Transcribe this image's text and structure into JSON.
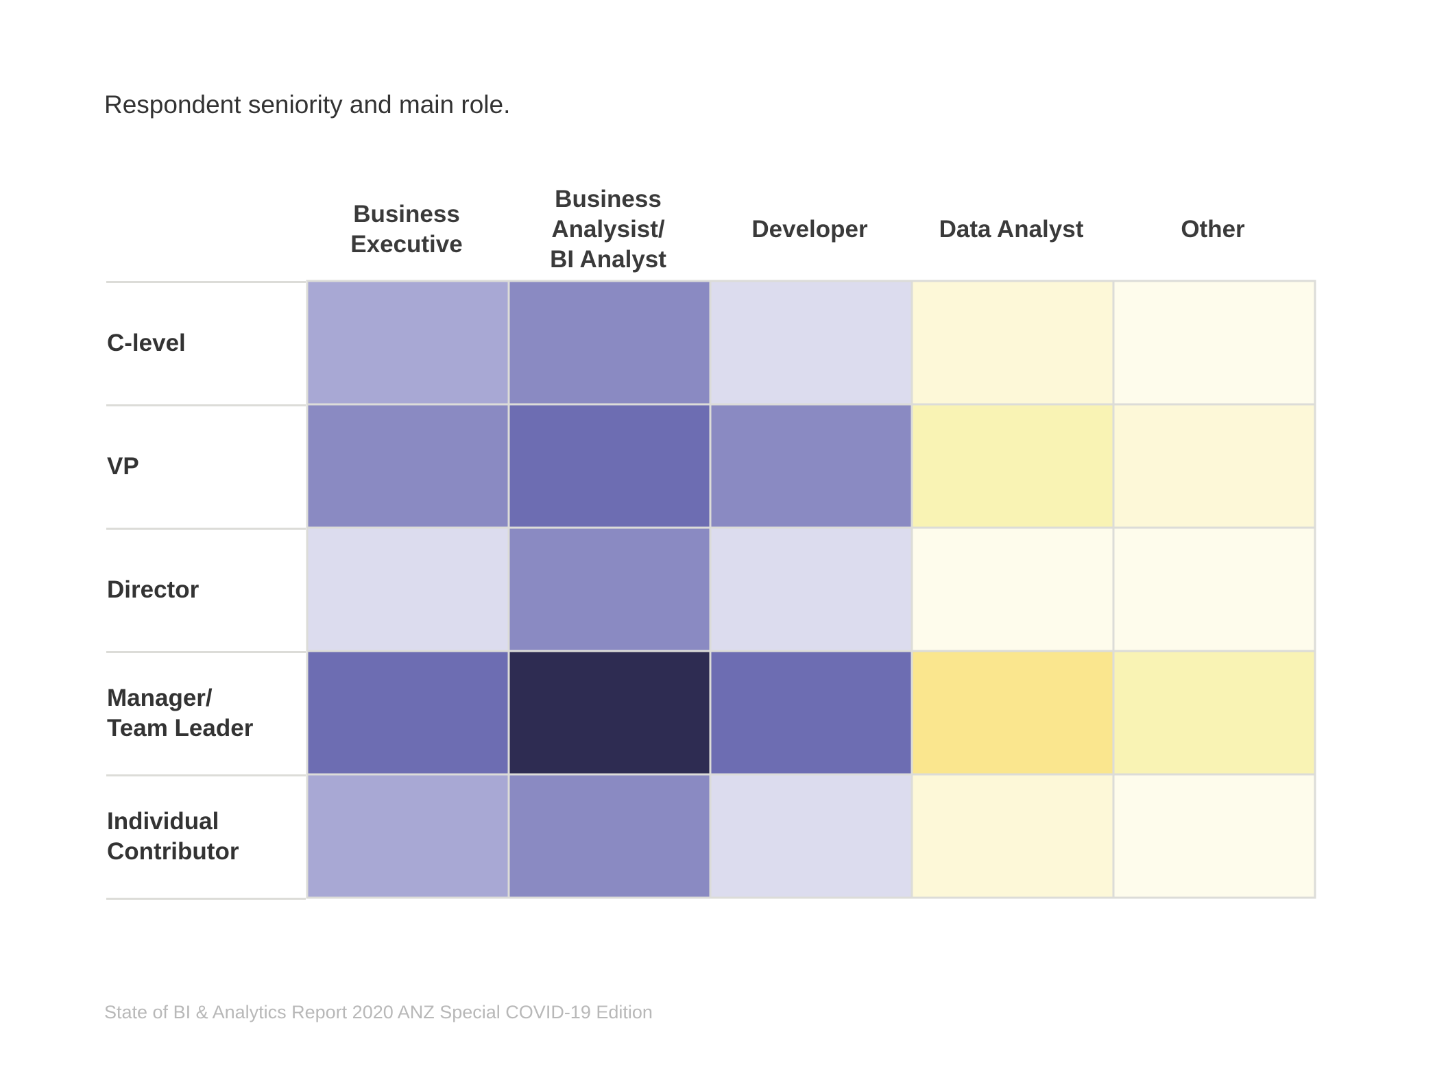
{
  "title": "Respondent seniority and main role.",
  "footer": "State of BI & Analytics Report 2020 ANZ Special COVID-19 Edition",
  "chart_data": {
    "type": "heatmap",
    "title": "Respondent seniority and main role.",
    "columns": [
      "Business\nExecutive",
      "Business\nAnalysist/\nBI Analyst",
      "Developer",
      "Data Analyst",
      "Other"
    ],
    "rows": [
      "C-level",
      "VP",
      "Director",
      "Manager/\nTeam Leader",
      "Individual\nContributor"
    ],
    "cell_colors": [
      [
        "#a8a8d4",
        "#8a8ac2",
        "#dcdcee",
        "#fdf8d8",
        "#fefcec"
      ],
      [
        "#8a8ac2",
        "#6d6db2",
        "#8a8ac2",
        "#f9f3b4",
        "#fdf8d8"
      ],
      [
        "#dcdcee",
        "#8a8ac2",
        "#dcdcee",
        "#fefcec",
        "#fefcec"
      ],
      [
        "#6d6db2",
        "#2e2c52",
        "#6d6db2",
        "#fae68e",
        "#f9f3b4"
      ],
      [
        "#a8a8d4",
        "#8a8ac2",
        "#dcdcee",
        "#fdf8d8",
        "#fefcec"
      ]
    ],
    "grid_color": "#dcdcd8"
  }
}
